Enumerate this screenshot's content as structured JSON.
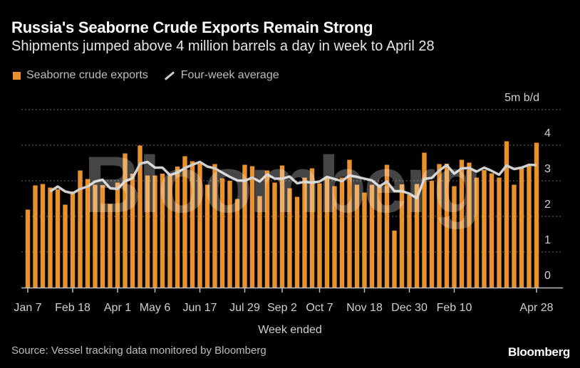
{
  "chart_data": {
    "type": "bar",
    "title": "Russia's Seaborne Crude Exports Remain Strong",
    "subtitle": "Shipments jumped above 4 million barrels a day in week to April 28",
    "xlabel": "Week ended",
    "ylabel": "5m b/d",
    "ylim": [
      0,
      5
    ],
    "yticks": [
      "0",
      "1",
      "2",
      "3",
      "4"
    ],
    "grid": true,
    "legend_placement": "top-left",
    "xtick_labels": [
      "Jan 7",
      "Feb 18",
      "Apr 1",
      "May 6",
      "Jun 17",
      "Jul 29",
      "Sep 2",
      "Oct 7",
      "Nov 18",
      "Dec 30",
      "Feb 10",
      "Apr 28"
    ],
    "xtick_week_index": [
      0,
      6,
      12,
      17,
      23,
      29,
      34,
      39,
      45,
      51,
      57,
      68
    ],
    "series": [
      {
        "name": "Seaborne crude exports",
        "type": "bar",
        "color": "#e8912d",
        "values": [
          2.19,
          2.87,
          2.91,
          2.81,
          2.76,
          2.33,
          2.7,
          3.29,
          3.05,
          2.89,
          2.88,
          2.35,
          2.95,
          3.77,
          3.2,
          3.99,
          3.15,
          3.15,
          3.2,
          3.15,
          3.4,
          3.69,
          3.55,
          3.48,
          2.89,
          3.47,
          3.07,
          3.0,
          2.49,
          3.45,
          3.41,
          2.57,
          3.29,
          2.95,
          3.43,
          2.79,
          2.55,
          3.09,
          3.35,
          2.93,
          3.08,
          2.85,
          3.09,
          3.59,
          2.89,
          2.67,
          2.89,
          2.9,
          3.45,
          1.6,
          2.9,
          2.61,
          2.91,
          3.79,
          3.0,
          3.47,
          3.48,
          2.85,
          3.59,
          3.51,
          3.09,
          3.3,
          3.21,
          3.09,
          4.11,
          2.89,
          3.38,
          3.41,
          4.07
        ]
      },
      {
        "name": "Four-week average",
        "type": "line",
        "color": "#d0d0d0",
        "start_index": 3,
        "values": [
          2.7,
          2.84,
          2.7,
          2.65,
          2.77,
          2.84,
          2.98,
          3.03,
          2.79,
          2.77,
          2.99,
          3.07,
          3.48,
          3.53,
          3.37,
          3.37,
          3.16,
          3.23,
          3.36,
          3.45,
          3.53,
          3.4,
          3.35,
          3.23,
          3.11,
          3.01,
          3.0,
          3.09,
          2.98,
          3.18,
          3.06,
          3.06,
          3.12,
          2.93,
          2.97,
          2.95,
          2.98,
          3.11,
          3.05,
          2.99,
          3.15,
          3.11,
          3.06,
          3.01,
          2.84,
          2.98,
          2.71,
          2.71,
          2.64,
          2.51,
          3.05,
          3.08,
          3.29,
          3.44,
          3.2,
          3.35,
          3.36,
          3.26,
          3.37,
          3.28,
          3.17,
          3.43,
          3.33,
          3.37,
          3.45,
          3.44
        ]
      }
    ]
  },
  "source": "Source: Vessel tracking data monitored by Bloomberg",
  "logo": "Bloomberg",
  "watermark": "Bloomberg"
}
